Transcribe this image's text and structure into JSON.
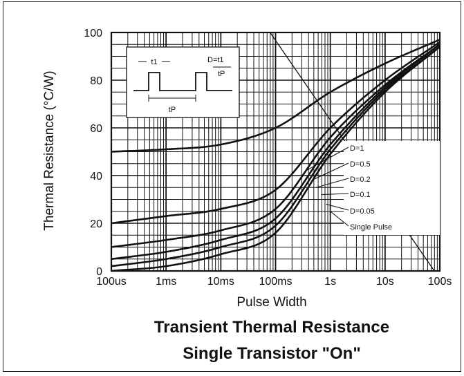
{
  "chart_data": {
    "type": "line",
    "title": "Transient Thermal Resistance",
    "subtitle": "Single Transistor \"On\"",
    "xlabel": "Pulse Width",
    "ylabel": "Thermal Resistance (°C/W)",
    "x_scale": "log",
    "xlim": [
      "100us",
      "100s"
    ],
    "ylim": [
      0,
      100
    ],
    "x_ticks": [
      "100us",
      "1ms",
      "10ms",
      "100ms",
      "1s",
      "10s",
      "100s"
    ],
    "y_ticks": [
      "0",
      "20",
      "40",
      "60",
      "80",
      "100"
    ],
    "grid": true,
    "legend_position": "right",
    "series": [
      {
        "name": "D=1",
        "x": [
          "100us",
          "1ms",
          "10ms",
          "100ms",
          "1s",
          "10s",
          "100s"
        ],
        "values": [
          50,
          51,
          53,
          60,
          75,
          87,
          97
        ]
      },
      {
        "name": "D=0.5",
        "x": [
          "100us",
          "1ms",
          "10ms",
          "100ms",
          "1s",
          "10s",
          "100s"
        ],
        "values": [
          20,
          23,
          26,
          34,
          60,
          80,
          96
        ]
      },
      {
        "name": "D=0.2",
        "x": [
          "100us",
          "1ms",
          "10ms",
          "100ms",
          "1s",
          "10s",
          "100s"
        ],
        "values": [
          10,
          13,
          17,
          26,
          56,
          78,
          95
        ]
      },
      {
        "name": "D=0.1",
        "x": [
          "100us",
          "1ms",
          "10ms",
          "100ms",
          "1s",
          "10s",
          "100s"
        ],
        "values": [
          5,
          8,
          13,
          22,
          53,
          77,
          95
        ]
      },
      {
        "name": "D=0.05",
        "x": [
          "100us",
          "1ms",
          "10ms",
          "100ms",
          "1s",
          "10s",
          "100s"
        ],
        "values": [
          2,
          5,
          10,
          19,
          51,
          76,
          94
        ]
      },
      {
        "name": "Single Pulse",
        "x": [
          "100us",
          "1ms",
          "10ms",
          "100ms",
          "1s",
          "10s",
          "100s"
        ],
        "values": [
          0,
          2,
          7,
          16,
          49,
          75,
          94
        ]
      }
    ],
    "inset_labels": {
      "t1": "t1",
      "duty": "D=t1",
      "tp_ratio": "tP",
      "tp": "tP"
    }
  },
  "colors": {
    "line": "#111111",
    "grid": "#111111",
    "background": "#ffffff"
  }
}
